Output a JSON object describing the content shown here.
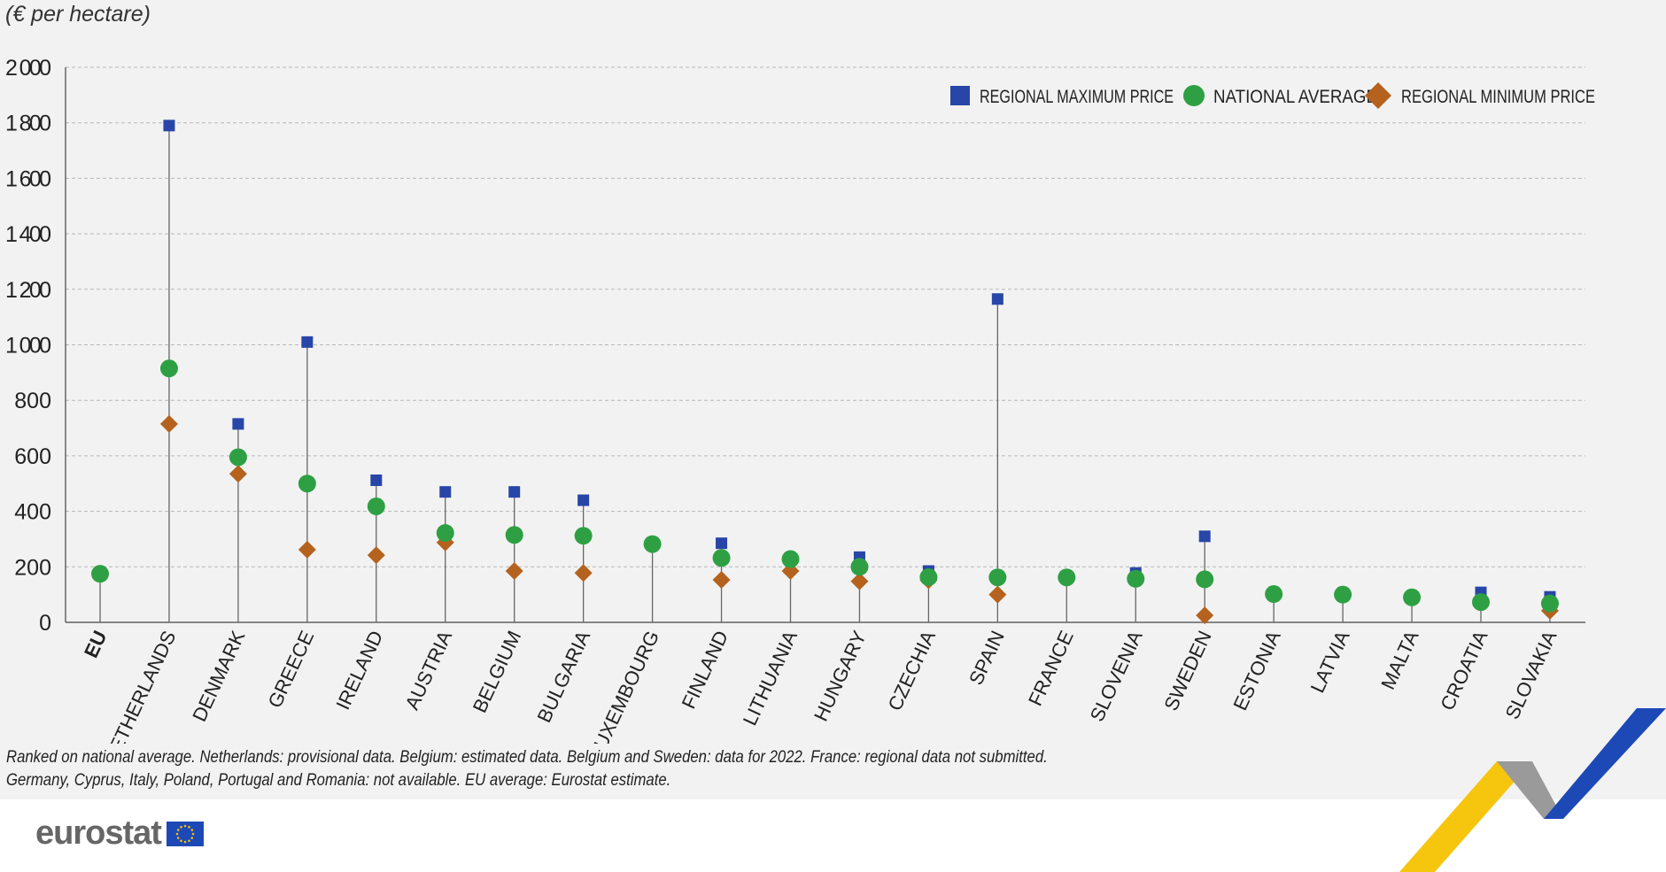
{
  "unit_label": "(€ per hectare)",
  "notes": [
    "Ranked on national average. Netherlands: provisional data. Belgium: estimated data. Belgium and Sweden: data for 2022. France: regional data not submitted.",
    "Germany, Cyprus, Italy, Poland, Portugal and Romania: not available. EU average: Eurostat estimate."
  ],
  "logo": {
    "text": "eurostat"
  },
  "colors": {
    "max": "#2846a8",
    "avg": "#2ea043",
    "min": "#b5621e",
    "grid": "#b8b8b8",
    "stem": "#666666",
    "ribbon_blue": "#1d49b7",
    "ribbon_yellow": "#f6c200",
    "ribbon_grey": "#9a9a9a"
  },
  "chart_data": {
    "type": "scatter",
    "title": "",
    "ylim": [
      0,
      2000
    ],
    "yticks": [
      0,
      200,
      400,
      600,
      800,
      1000,
      1200,
      1400,
      1600,
      1800,
      2000
    ],
    "ytick_labels": [
      "0",
      "200",
      "400",
      "600",
      "800",
      "1 000",
      "1 200",
      "1 400",
      "1 600",
      "1 800",
      "2 000"
    ],
    "grid": true,
    "legend_position": "top-right",
    "categories": [
      "EU",
      "NETHERLANDS",
      "DENMARK",
      "GREECE",
      "IRELAND",
      "AUSTRIA",
      "BELGIUM",
      "BULGARIA",
      "LUXEMBOURG",
      "FINLAND",
      "LITHUANIA",
      "HUNGARY",
      "CZECHIA",
      "SPAIN",
      "FRANCE",
      "SLOVENIA",
      "SWEDEN",
      "ESTONIA",
      "LATVIA",
      "MALTA",
      "CROATIA",
      "SLOVAKIA"
    ],
    "series": [
      {
        "name": "REGIONAL MAXIMUM PRICE",
        "marker": "square",
        "values": [
          null,
          1790,
          715,
          1010,
          512,
          470,
          470,
          440,
          null,
          285,
          null,
          235,
          185,
          1165,
          null,
          178,
          310,
          null,
          null,
          null,
          108,
          92
        ]
      },
      {
        "name": "NATIONAL AVERAGE",
        "marker": "circle",
        "values": [
          175,
          915,
          595,
          500,
          418,
          322,
          315,
          312,
          282,
          232,
          228,
          200,
          163,
          162,
          162,
          157,
          155,
          102,
          100,
          90,
          73,
          68
        ]
      },
      {
        "name": "REGIONAL MINIMUM PRICE",
        "marker": "diamond",
        "values": [
          null,
          715,
          535,
          262,
          242,
          288,
          185,
          178,
          null,
          153,
          185,
          148,
          152,
          100,
          null,
          null,
          25,
          null,
          null,
          null,
          null,
          42
        ]
      }
    ]
  }
}
